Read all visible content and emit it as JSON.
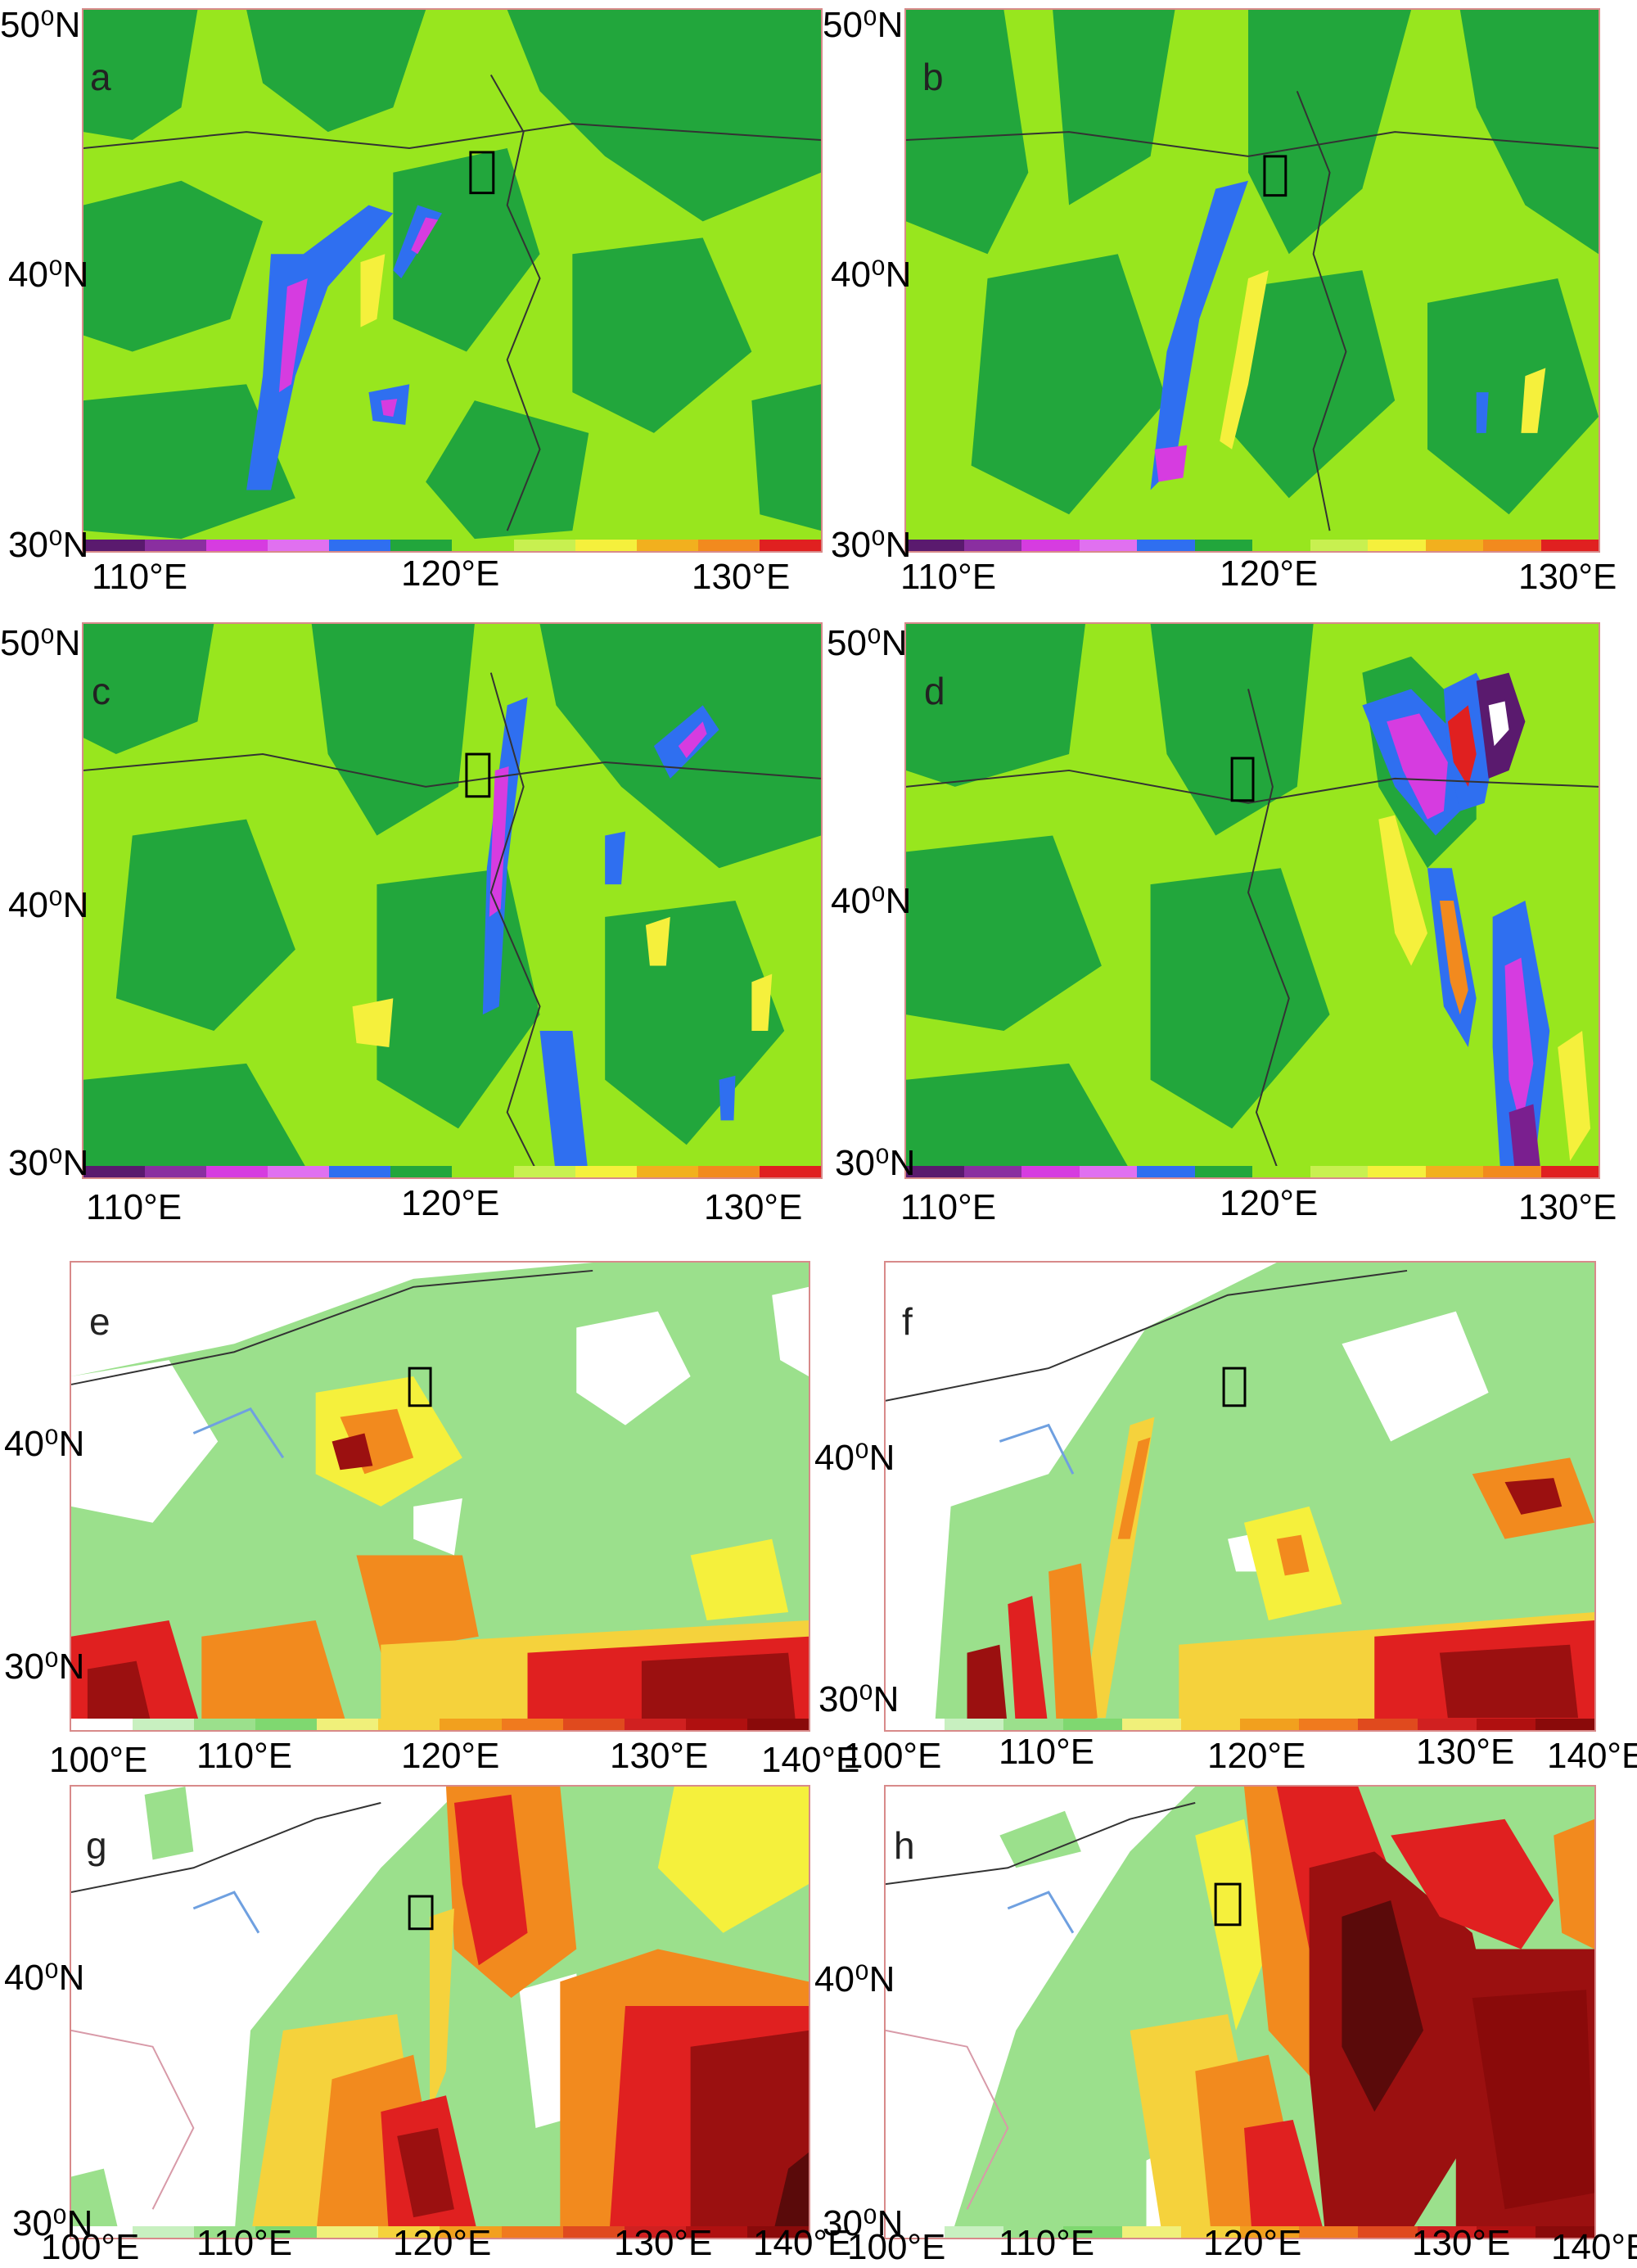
{
  "panels": [
    {
      "id": "a",
      "label": "a",
      "lat_labels": [
        "50⁰N",
        "40⁰N",
        "30⁰N"
      ],
      "lon_labels": [
        "110°E",
        "120°E",
        "130°E"
      ]
    },
    {
      "id": "b",
      "label": "b",
      "lat_labels": [
        "50⁰N",
        "40⁰N",
        "30⁰N"
      ],
      "lon_labels": [
        "110°E",
        "120°E",
        "130°E"
      ]
    },
    {
      "id": "c",
      "label": "c",
      "lat_labels": [
        "50⁰N",
        "40⁰N",
        "30⁰N"
      ],
      "lon_labels": [
        "110°E",
        "120°E",
        "130°E"
      ]
    },
    {
      "id": "d",
      "label": "d",
      "lat_labels": [
        "50⁰N",
        "40⁰N",
        "30⁰N"
      ],
      "lon_labels": [
        "110°E",
        "120°E",
        "130°E"
      ]
    },
    {
      "id": "e",
      "label": "e",
      "lat_labels": [
        "40⁰N",
        "30⁰N"
      ],
      "lon_labels": [
        "100°E",
        "110°E",
        "120°E",
        "130°E",
        "140°E"
      ]
    },
    {
      "id": "f",
      "label": "f",
      "lat_labels": [
        "40⁰N",
        "30⁰N"
      ],
      "lon_labels": [
        "100°E",
        "110°E",
        "120°E",
        "130°E",
        "140°E"
      ]
    },
    {
      "id": "g",
      "label": "g",
      "lat_labels": [
        "40⁰N",
        "30⁰N"
      ],
      "lon_labels": [
        "100°E",
        "110°E",
        "120°E",
        "130°E",
        "140°E"
      ]
    },
    {
      "id": "h",
      "label": "h",
      "lat_labels": [
        "40⁰N",
        "30⁰N"
      ],
      "lon_labels": [
        "100°E",
        "110°E",
        "120°E",
        "130°E",
        "140°E"
      ]
    }
  ],
  "colors": {
    "panel_border": "#d88a8a",
    "green_dark": "#22a63c",
    "green_light": "#98e61e",
    "blue": "#2f6ff0",
    "magenta": "#d63ce0",
    "purple": "#7a1f8f",
    "yellow": "#f5f03c",
    "orange": "#f28a1e",
    "red": "#e02020",
    "dark_red": "#9b1010",
    "pale_green": "#9be08c",
    "white": "#ffffff"
  },
  "colorbar_top": [
    "#5a1a6e",
    "#8a2fa0",
    "#d63ce0",
    "#e070f0",
    "#2f6ff0",
    "#22a63c",
    "#98e61e",
    "#c8f050",
    "#f5f03c",
    "#f2b01e",
    "#f28a1e",
    "#e02020"
  ],
  "colorbar_bottom": [
    "#ffffff",
    "#c8f0c0",
    "#9be08c",
    "#7fd870",
    "#f0f07a",
    "#f5d23c",
    "#f2a01e",
    "#f07a1e",
    "#e04a1e",
    "#d02020",
    "#b01010",
    "#8a0a0a"
  ]
}
